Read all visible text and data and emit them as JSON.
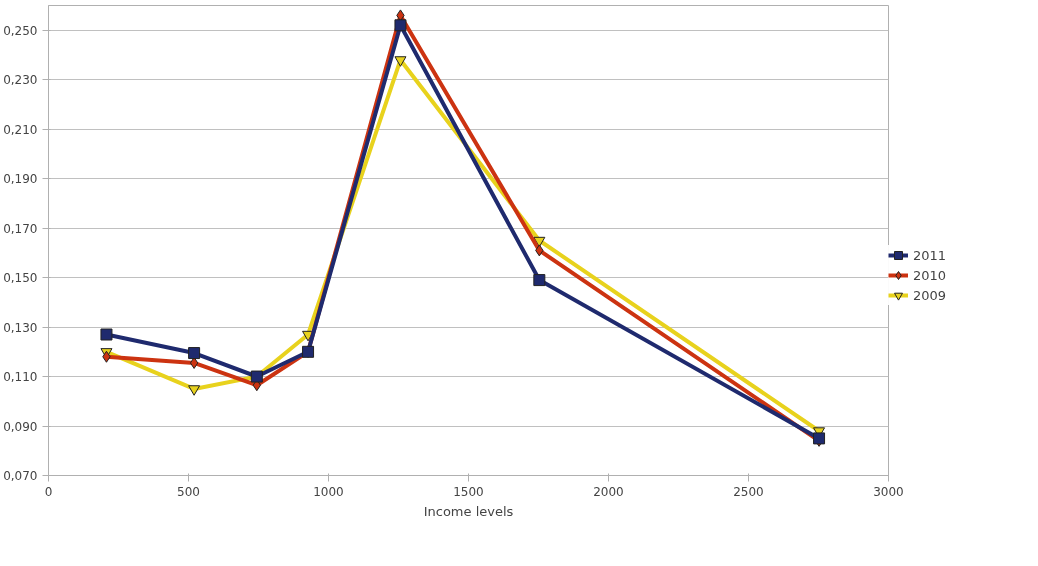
{
  "chart_data": {
    "type": "line",
    "xlabel": "Income levels",
    "xlim": [
      0,
      3000
    ],
    "xticks": [
      0,
      500,
      1000,
      1500,
      2000,
      2500,
      3000
    ],
    "ylim": [
      0.07,
      0.26
    ],
    "yticks": [
      {
        "value": 0.07,
        "label": "0,070"
      },
      {
        "value": 0.09,
        "label": "0,090"
      },
      {
        "value": 0.11,
        "label": "0,110"
      },
      {
        "value": 0.13,
        "label": "0,130"
      },
      {
        "value": 0.15,
        "label": "0,150"
      },
      {
        "value": 0.17,
        "label": "0,170"
      },
      {
        "value": 0.19,
        "label": "0,190"
      },
      {
        "value": 0.21,
        "label": "0,210"
      },
      {
        "value": 0.23,
        "label": "0,230"
      },
      {
        "value": 0.25,
        "label": "0,250"
      }
    ],
    "x": [
      207,
      520,
      744,
      927,
      1257,
      1753,
      2752
    ],
    "grid": "y",
    "legend": "right",
    "line_style": "solid",
    "series": [
      {
        "name": "2011",
        "color": "#1f2a6e",
        "marker": "square",
        "values": [
          0.127,
          0.1195,
          0.11,
          0.12,
          0.252,
          0.149,
          0.085
        ]
      },
      {
        "name": "2010",
        "color": "#cc3311",
        "marker": "diamond",
        "values": [
          0.118,
          0.1155,
          0.1065,
          0.12,
          0.256,
          0.161,
          0.084
        ]
      },
      {
        "name": "2009",
        "color": "#e8d21d",
        "marker": "triangle",
        "values": [
          0.12,
          0.105,
          0.11,
          0.127,
          0.238,
          0.165,
          0.088
        ]
      }
    ]
  }
}
